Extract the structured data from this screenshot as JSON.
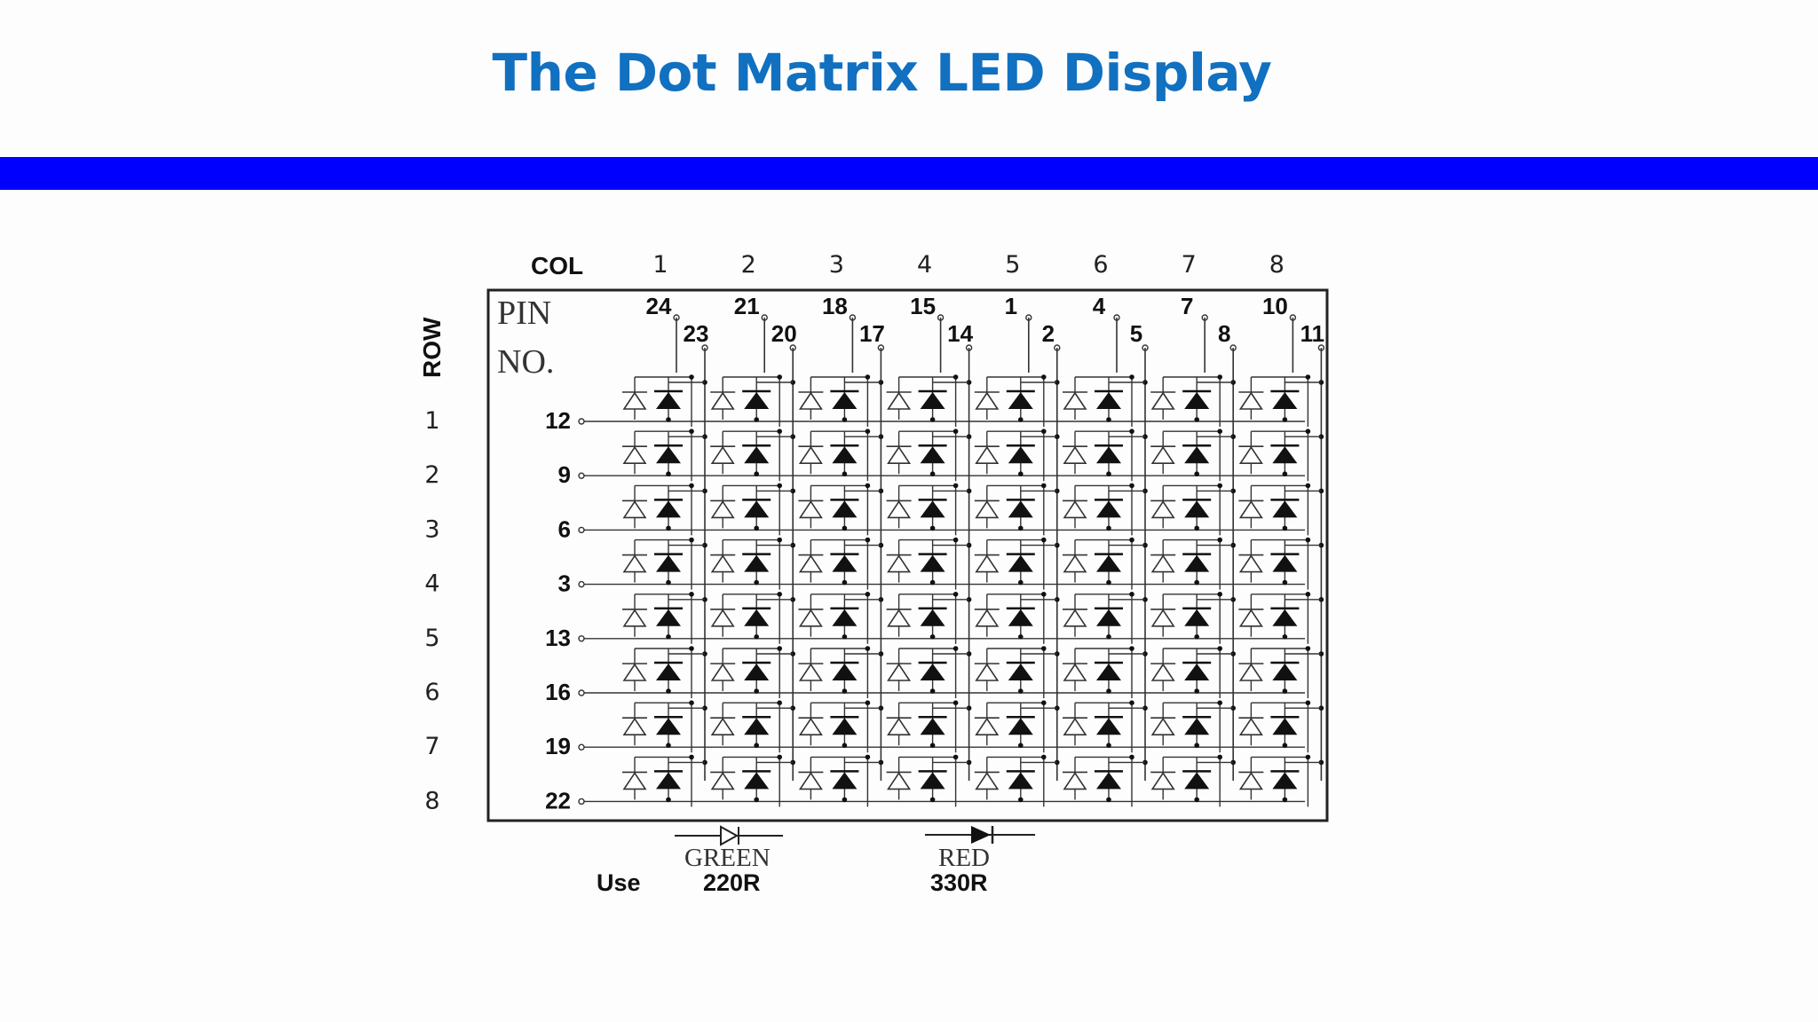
{
  "slide": {
    "title": "The Dot Matrix LED Display",
    "band_color": "#0000ff",
    "title_color": "#1170c0"
  },
  "diagram": {
    "col_label": "COL",
    "row_label": "ROW",
    "pin_label_1": "PIN",
    "pin_label_2": "NO.",
    "col_numbers": [
      "1",
      "2",
      "3",
      "4",
      "5",
      "6",
      "7",
      "8"
    ],
    "col_pins_upper": [
      "24",
      "21",
      "18",
      "15",
      "1",
      "4",
      "7",
      "10"
    ],
    "col_pins_lower": [
      "23",
      "20",
      "17",
      "14",
      "2",
      "5",
      "8",
      "11"
    ],
    "row_numbers": [
      "1",
      "2",
      "3",
      "4",
      "5",
      "6",
      "7",
      "8"
    ],
    "row_pins": [
      "12",
      "9",
      "6",
      "3",
      "13",
      "16",
      "19",
      "22"
    ],
    "legend": {
      "use_label": "Use",
      "green_label": "GREEN",
      "green_resistor": "220R",
      "red_label": "RED",
      "red_resistor": "330R"
    }
  }
}
